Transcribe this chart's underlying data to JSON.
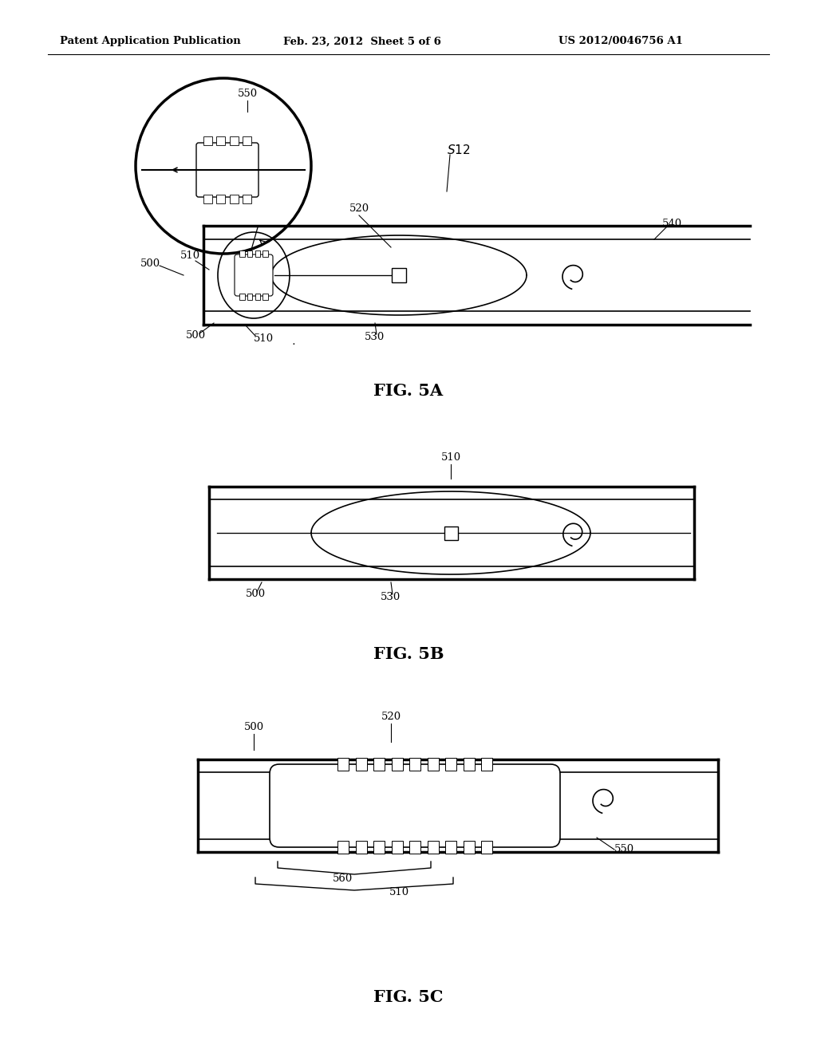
{
  "bg_color": "#ffffff",
  "line_color": "#000000",
  "header_left": "Patent Application Publication",
  "header_mid": "Feb. 23, 2012  Sheet 5 of 6",
  "header_right": "US 2012/0046756 A1",
  "fig5a_label": "FIG. 5A",
  "fig5b_label": "FIG. 5B",
  "fig5c_label": "FIG. 5C"
}
